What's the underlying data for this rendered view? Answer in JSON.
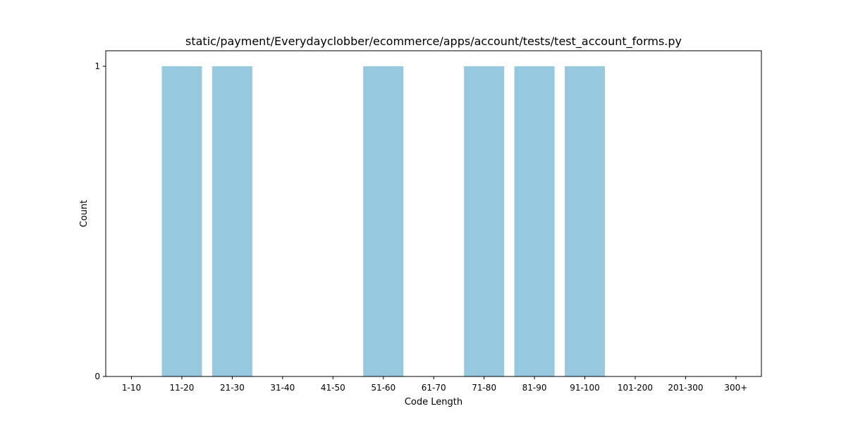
{
  "chart_data": {
    "type": "bar",
    "title": "static/payment/Everydayclobber/ecommerce/apps/account/tests/test_account_forms.py",
    "xlabel": "Code Length",
    "ylabel": "Count",
    "categories": [
      "1-10",
      "11-20",
      "21-30",
      "31-40",
      "41-50",
      "51-60",
      "61-70",
      "71-80",
      "81-90",
      "91-100",
      "101-200",
      "201-300",
      "300+"
    ],
    "values": [
      0,
      1,
      1,
      0,
      0,
      1,
      0,
      1,
      1,
      1,
      0,
      0,
      0
    ],
    "yticks": [
      0,
      1
    ],
    "ylim": [
      0,
      1.05
    ],
    "bar_color": "#96c9dd",
    "grid": false,
    "legend": "none"
  }
}
